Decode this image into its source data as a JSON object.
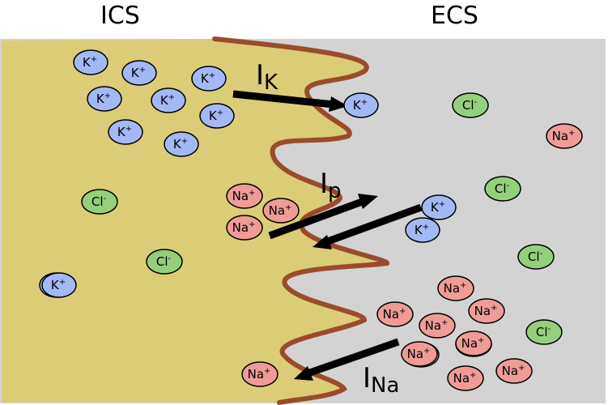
{
  "labels": {
    "left": "ICS",
    "right": "ECS"
  },
  "currents": {
    "potassium": {
      "main": "I",
      "sub": "K"
    },
    "pump": {
      "main": "I",
      "sub": "p"
    },
    "sodium": {
      "main": "I",
      "sub": "Na"
    }
  },
  "ion_types": {
    "K": {
      "symbol": "K",
      "charge": "+",
      "color": "#a3b8f5"
    },
    "Na": {
      "symbol": "Na",
      "charge": "+",
      "color": "#ef9c96"
    },
    "Cl": {
      "symbol": "Cl",
      "charge": "-",
      "color": "#94cf7c"
    }
  },
  "ions": [
    {
      "type": "K",
      "name": "ion-k-ics-1"
    },
    {
      "type": "K",
      "name": "ion-k-ics-2"
    },
    {
      "type": "K",
      "name": "ion-k-ics-3"
    },
    {
      "type": "K",
      "name": "ion-k-ics-4"
    },
    {
      "type": "K",
      "name": "ion-k-ics-5"
    },
    {
      "type": "K",
      "name": "ion-k-ics-6"
    },
    {
      "type": "K",
      "name": "ion-k-ics-7"
    },
    {
      "type": "K",
      "name": "ion-k-ics-8"
    },
    {
      "type": "K",
      "name": "ion-k-ics-9"
    },
    {
      "type": "K",
      "name": "ion-k-ics-10"
    },
    {
      "type": "Cl",
      "name": "ion-cl-ics-1"
    },
    {
      "type": "Cl",
      "name": "ion-cl-ics-2"
    },
    {
      "type": "Na",
      "name": "ion-na-ics-1"
    },
    {
      "type": "Na",
      "name": "ion-na-ics-2"
    },
    {
      "type": "Na",
      "name": "ion-na-ics-3"
    },
    {
      "type": "Na",
      "name": "ion-na-ics-4"
    },
    {
      "type": "K",
      "name": "ion-k-ecs-1"
    },
    {
      "type": "K",
      "name": "ion-k-ecs-2"
    },
    {
      "type": "K",
      "name": "ion-k-ecs-3"
    },
    {
      "type": "Cl",
      "name": "ion-cl-ecs-1"
    },
    {
      "type": "Cl",
      "name": "ion-cl-ecs-2"
    },
    {
      "type": "Cl",
      "name": "ion-cl-ecs-3"
    },
    {
      "type": "Cl",
      "name": "ion-cl-ecs-4"
    },
    {
      "type": "Na",
      "name": "ion-na-ecs-1"
    },
    {
      "type": "Na",
      "name": "ion-na-ecs-2"
    },
    {
      "type": "Na",
      "name": "ion-na-ecs-3"
    },
    {
      "type": "Na",
      "name": "ion-na-ecs-4"
    },
    {
      "type": "Na",
      "name": "ion-na-ecs-5"
    },
    {
      "type": "Na",
      "name": "ion-na-ecs-6"
    },
    {
      "type": "Na",
      "name": "ion-na-ecs-7"
    },
    {
      "type": "Na",
      "name": "ion-na-ecs-8"
    },
    {
      "type": "Na",
      "name": "ion-na-ecs-9"
    },
    {
      "type": "Na",
      "name": "ion-na-ecs-10"
    },
    {
      "type": "Na",
      "name": "ion-na-ecs-11"
    }
  ],
  "colors": {
    "ics_fill": "#dbcc78",
    "ecs_fill": "#d3d3d3",
    "membrane": "#9a4b2c",
    "arrow": "#000000"
  }
}
